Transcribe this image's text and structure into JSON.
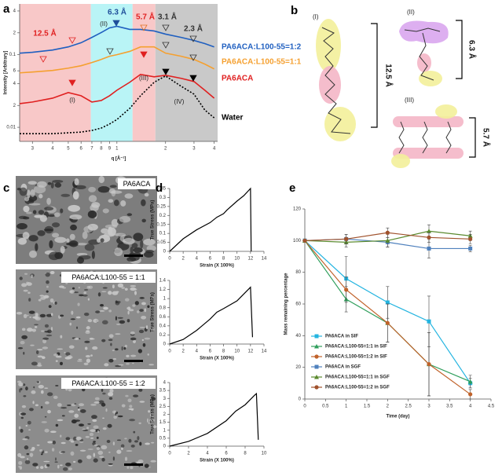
{
  "panel_labels": [
    "a",
    "b",
    "c",
    "d",
    "e"
  ],
  "structures": [
    {
      "label": "(I)",
      "size": "12.5 Å"
    },
    {
      "label": "(II)",
      "size": "6.3 Å"
    },
    {
      "label": "(III)",
      "size": "5.7 Å"
    }
  ],
  "micrographs": [
    {
      "label": "PA6ACA"
    },
    {
      "label": "PA6ACA:L100-55 = 1:1"
    },
    {
      "label": "PA6ACA:L100-55 = 1:2"
    }
  ],
  "chart_data": [
    {
      "type": "line",
      "x_label": "q [Å⁻¹]",
      "y_label": "Intensity [Arbitrary]",
      "xscale": "log",
      "yscale": "log",
      "xlim": [
        0.25,
        4.2
      ],
      "ylim": [
        0.0064,
        0.5
      ],
      "xticks": [
        {
          "value": 0.3,
          "label": "3"
        },
        {
          "value": 0.4,
          "label": "4"
        },
        {
          "value": 0.5,
          "label": "5"
        },
        {
          "value": 0.6,
          "label": "6"
        },
        {
          "value": 0.7,
          "label": "7"
        },
        {
          "value": 0.8,
          "label": "8"
        },
        {
          "value": 0.9,
          "label": "9"
        },
        1,
        2,
        3,
        4
      ],
      "yticks": [
        0.01,
        {
          "value": 0.02,
          "label": "2"
        },
        {
          "value": 0.04,
          "label": "4"
        },
        {
          "value": 0.06,
          "label": "6"
        },
        0.1,
        {
          "value": 0.2,
          "label": "2"
        },
        {
          "value": 0.4,
          "label": "4"
        }
      ],
      "regions": [
        {
          "xlim": [
            0.25,
            0.69
          ],
          "color": "#f8c8c8"
        },
        {
          "xlim": [
            0.69,
            1.25
          ],
          "color": "#b9f4f6"
        },
        {
          "xlim": [
            1.25,
            1.73
          ],
          "color": "#f8c8c8"
        },
        {
          "xlim": [
            1.73,
            4.2
          ],
          "color": "#c9c9c9"
        }
      ],
      "annotations": [
        {
          "text": "12.5 Å",
          "color": "#e02020"
        },
        {
          "text": "(II)",
          "color": "#222222"
        },
        {
          "text": "6.3 Å",
          "color": "#1f4e9a"
        },
        {
          "text": "5.7 Å",
          "color": "#e02020"
        },
        {
          "text": "3.1 Å",
          "color": "#333333"
        },
        {
          "text": "2.3 Å",
          "color": "#333333"
        },
        {
          "text": "(I)",
          "color": "#222222"
        },
        {
          "text": "(III)",
          "color": "#222222"
        },
        {
          "text": "(IV)",
          "color": "#222222"
        }
      ],
      "x": [
        0.25,
        0.3,
        0.4,
        0.5,
        0.6,
        0.7,
        0.8,
        0.9,
        1.0,
        1.2,
        1.4,
        1.7,
        2.0,
        2.5,
        3.0,
        3.5,
        4.0
      ],
      "series": [
        {
          "name": "PA6ACA:L100-55=1:2",
          "color": "#1f5fc0",
          "values": [
            0.105,
            0.108,
            0.116,
            0.128,
            0.146,
            0.173,
            0.202,
            0.234,
            0.246,
            0.223,
            0.223,
            0.212,
            0.192,
            0.173,
            0.157,
            0.142,
            0.128
          ]
        },
        {
          "name": "PA6ACA:L100-55=1:1",
          "color": "#f5a030",
          "values": [
            0.0562,
            0.0577,
            0.0607,
            0.0653,
            0.0705,
            0.0779,
            0.086,
            0.0951,
            0.1,
            0.111,
            0.128,
            0.128,
            0.105,
            0.0951,
            0.086,
            0.0741,
            0.0637
          ]
        },
        {
          "name": "PA6ACA",
          "color": "#e02020",
          "values": [
            0.0212,
            0.0223,
            0.0252,
            0.0301,
            0.0272,
            0.0223,
            0.0234,
            0.0272,
            0.0324,
            0.0417,
            0.0535,
            0.0496,
            0.0521,
            0.0472,
            0.0427,
            0.0324,
            0.0252
          ]
        },
        {
          "name": "Water",
          "color": "#000000",
          "dash": "dotted",
          "values": [
            0.00818,
            0.00818,
            0.00818,
            0.0084,
            0.0086,
            0.00906,
            0.00976,
            0.0111,
            0.0128,
            0.0182,
            0.0272,
            0.0417,
            0.0509,
            0.0367,
            0.0286,
            0.0173,
            0.0135
          ]
        }
      ]
    },
    {
      "type": "line",
      "x_label": "Strain (X 100%)",
      "y_label": "True Stress (MPa)",
      "color": "#000000",
      "xlim": [
        0,
        14
      ],
      "ylim": [
        0,
        0.35
      ],
      "xticks": [
        0,
        2,
        4,
        6,
        8,
        10,
        12,
        14
      ],
      "yticks": [
        0,
        0.05,
        0.1,
        0.15,
        0.2,
        0.25,
        0.3,
        0.35
      ],
      "x": [
        0,
        2,
        4,
        6,
        7,
        8,
        8.5,
        10,
        11,
        12,
        12.1
      ],
      "values": [
        0,
        0.07,
        0.12,
        0.16,
        0.19,
        0.21,
        0.23,
        0.28,
        0.31,
        0.35,
        0
      ]
    },
    {
      "type": "line",
      "x_label": "Strain (X 100%)",
      "y_label": "True Stress (MPa)",
      "color": "#000000",
      "xlim": [
        0,
        14
      ],
      "ylim": [
        0,
        1.4
      ],
      "xticks": [
        0,
        2,
        4,
        6,
        8,
        10,
        12,
        14
      ],
      "yticks": [
        0,
        0.2,
        0.4,
        0.6,
        0.8,
        1,
        1.2,
        1.4
      ],
      "x": [
        0,
        2,
        4,
        6,
        7,
        8,
        10,
        12,
        12.3
      ],
      "values": [
        0,
        0.1,
        0.3,
        0.55,
        0.7,
        0.78,
        0.95,
        1.25,
        0.15
      ]
    },
    {
      "type": "line",
      "x_label": "Strain (X 100%)",
      "y_label": "True Stress (MPa)",
      "color": "#000000",
      "xlim": [
        0,
        10
      ],
      "ylim": [
        0,
        4
      ],
      "xticks": [
        0,
        2,
        4,
        6,
        8,
        10
      ],
      "yticks": [
        0,
        0.5,
        1,
        1.5,
        2,
        2.5,
        3,
        3.5,
        4
      ],
      "x": [
        0,
        2,
        4,
        6,
        7,
        8,
        9,
        9.2,
        9.4
      ],
      "values": [
        0,
        0.3,
        0.8,
        1.6,
        2.2,
        2.6,
        3.2,
        3.3,
        0.4
      ]
    },
    {
      "type": "line",
      "x_label": "Time (day)",
      "y_label": "Mass remaining percentage",
      "legend": "lower-left",
      "markers": true,
      "xlim": [
        0,
        4.5
      ],
      "ylim": [
        0,
        120
      ],
      "xticks": [
        0,
        0.5,
        1,
        1.5,
        2,
        2.5,
        3,
        3.5,
        4,
        4.5
      ],
      "yticks": [
        0,
        20,
        40,
        60,
        80,
        100,
        120
      ],
      "x": [
        0,
        1,
        2,
        3,
        4
      ],
      "series": [
        {
          "name": "PA6ACA in SIF",
          "color": "#23b4e0",
          "marker": "square",
          "values": [
            100,
            76,
            61,
            49,
            10
          ],
          "errors": [
            0,
            14,
            10,
            16,
            3
          ]
        },
        {
          "name": "PA6ACA:L100-55=1:1 in SIF",
          "color": "#2e9e5b",
          "marker": "triangle",
          "values": [
            100,
            63,
            48,
            22,
            11
          ],
          "errors": [
            0,
            8,
            12,
            20,
            4
          ]
        },
        {
          "name": "PA6ACA:L100-55=1:2 in SIF",
          "color": "#c0622a",
          "marker": "circle",
          "values": [
            100,
            69,
            48,
            22,
            3
          ],
          "errors": [
            0,
            8,
            12,
            20,
            3
          ]
        },
        {
          "name": "PA6ACA in SGF",
          "color": "#4f81bd",
          "marker": "square",
          "values": [
            100,
            101,
            99,
            95,
            95
          ],
          "errors": [
            0,
            3,
            3,
            6,
            2
          ]
        },
        {
          "name": "PA6ACA:L100-55=1:1 in SGF",
          "color": "#5a8a2e",
          "marker": "triangle",
          "values": [
            100,
            99,
            100,
            106,
            103
          ],
          "errors": [
            0,
            3,
            4,
            4,
            3
          ]
        },
        {
          "name": "PA6ACA:L100-55=1:2 in SGF",
          "color": "#a0522d",
          "marker": "circle",
          "values": [
            100,
            101,
            105,
            102,
            101
          ],
          "errors": [
            0,
            3,
            3,
            3,
            3
          ]
        }
      ]
    }
  ]
}
